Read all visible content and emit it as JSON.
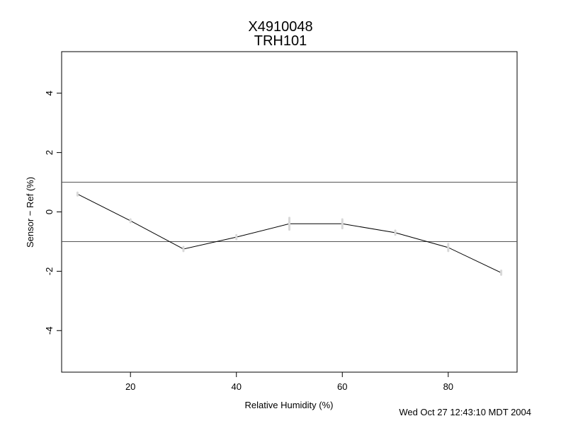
{
  "chart_data": {
    "type": "line",
    "title": "X4910048",
    "subtitle": "TRH101",
    "xlabel": "Relative Humidity (%)",
    "ylabel": "Sensor − Ref (%)",
    "xlim": [
      7,
      93
    ],
    "ylim": [
      -5.4,
      5.4
    ],
    "xticks": [
      20,
      40,
      60,
      80
    ],
    "yticks": [
      -4,
      -2,
      0,
      2,
      4
    ],
    "reference_lines": [
      1,
      -1
    ],
    "series": [
      {
        "x": [
          10,
          20,
          30,
          40,
          50,
          60,
          70,
          80,
          90
        ],
        "y": [
          0.6,
          -0.3,
          -1.25,
          -0.85,
          -0.4,
          -0.4,
          -0.7,
          -1.2,
          -2.05
        ],
        "error": [
          0.05,
          0.05,
          0.07,
          0.07,
          0.2,
          0.15,
          0.07,
          0.12,
          0.07
        ]
      }
    ],
    "grid": false,
    "colors": {
      "line": "#000000",
      "marker": "#d8d8d8"
    }
  },
  "footer": {
    "timestamp": "Wed Oct 27 12:43:10 MDT 2004"
  }
}
